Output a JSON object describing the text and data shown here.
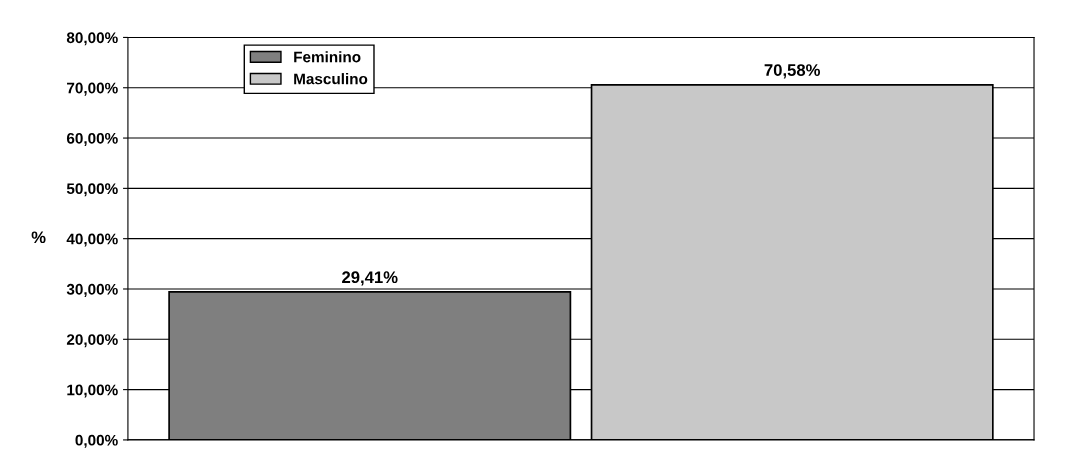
{
  "chart_data": {
    "type": "bar",
    "ylabel": "%",
    "categories": [
      null
    ],
    "series": [
      {
        "name": "Feminino",
        "color": "#7f7f7f",
        "values": [
          29.41
        ],
        "value_labels": [
          "29,41%"
        ]
      },
      {
        "name": "Masculino",
        "color": "#c8c8c8",
        "values": [
          70.58
        ],
        "value_labels": [
          "70,58%"
        ]
      }
    ],
    "ylim": [
      0,
      80
    ],
    "yticks": [
      {
        "value": 0,
        "label": "0,00%"
      },
      {
        "value": 10,
        "label": "10,00%"
      },
      {
        "value": 20,
        "label": "20,00%"
      },
      {
        "value": 30,
        "label": "30,00%"
      },
      {
        "value": 40,
        "label": "40,00%"
      },
      {
        "value": 50,
        "label": "50,00%"
      },
      {
        "value": 60,
        "label": "60,00%"
      },
      {
        "value": 70,
        "label": "70,00%"
      },
      {
        "value": 80,
        "label": "80,00%"
      }
    ],
    "grid": "y",
    "legend": "top left"
  }
}
